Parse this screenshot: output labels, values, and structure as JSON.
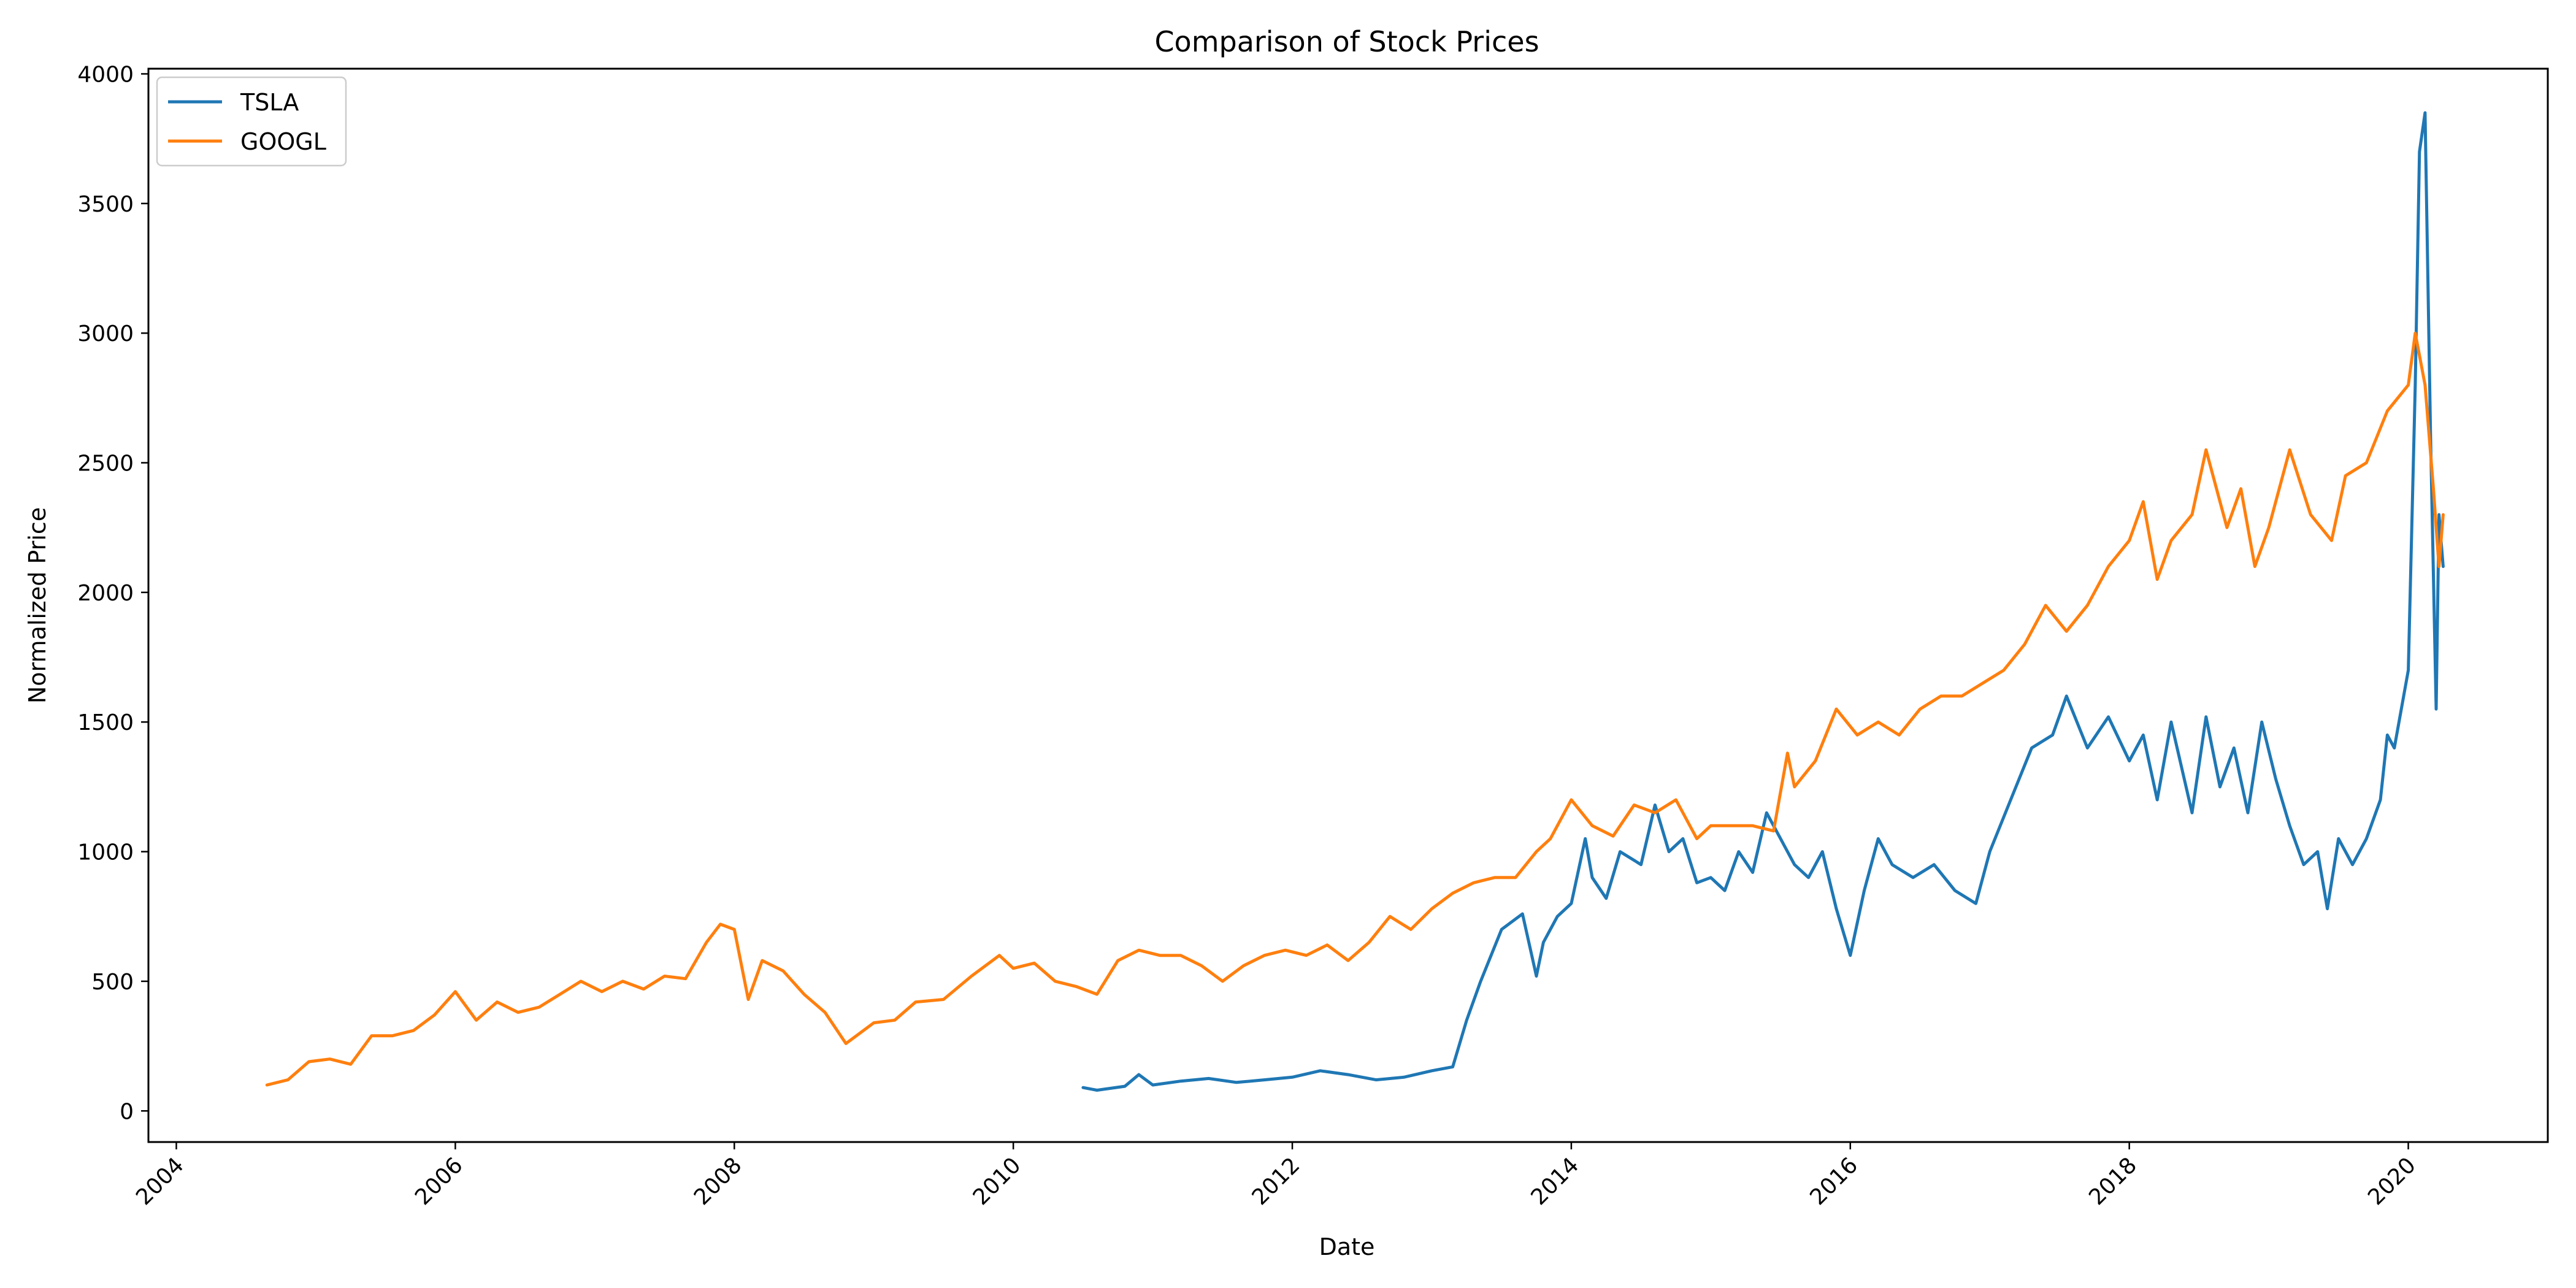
{
  "chart_data": {
    "type": "line",
    "title": "Comparison of Stock Prices",
    "xlabel": "Date",
    "ylabel": "Normalized Price",
    "xlim": [
      2003.8,
      2021.0
    ],
    "ylim": [
      -120,
      4020
    ],
    "x_ticks": [
      2004,
      2006,
      2008,
      2010,
      2012,
      2014,
      2016,
      2018,
      2020
    ],
    "x_tick_labels": [
      "2004",
      "2006",
      "2008",
      "2010",
      "2012",
      "2014",
      "2016",
      "2018",
      "2020"
    ],
    "y_ticks": [
      0,
      500,
      1000,
      1500,
      2000,
      2500,
      3000,
      3500,
      4000
    ],
    "y_tick_labels": [
      "0",
      "500",
      "1000",
      "1500",
      "2000",
      "2500",
      "3000",
      "3500",
      "4000"
    ],
    "grid": false,
    "legend_position": "top-left",
    "series": [
      {
        "name": "TSLA",
        "color": "#1f77b4",
        "x": [
          2010.5,
          2010.6,
          2010.8,
          2010.9,
          2011.0,
          2011.2,
          2011.4,
          2011.6,
          2011.8,
          2012.0,
          2012.2,
          2012.4,
          2012.6,
          2012.8,
          2013.0,
          2013.15,
          2013.25,
          2013.35,
          2013.5,
          2013.65,
          2013.75,
          2013.8,
          2013.9,
          2014.0,
          2014.1,
          2014.15,
          2014.25,
          2014.35,
          2014.5,
          2014.6,
          2014.7,
          2014.8,
          2014.9,
          2015.0,
          2015.1,
          2015.2,
          2015.3,
          2015.4,
          2015.5,
          2015.6,
          2015.7,
          2015.8,
          2015.9,
          2016.0,
          2016.1,
          2016.2,
          2016.3,
          2016.45,
          2016.6,
          2016.75,
          2016.9,
          2017.0,
          2017.15,
          2017.3,
          2017.45,
          2017.55,
          2017.7,
          2017.85,
          2018.0,
          2018.1,
          2018.2,
          2018.3,
          2018.45,
          2018.55,
          2018.65,
          2018.75,
          2018.85,
          2018.95,
          2019.05,
          2019.15,
          2019.25,
          2019.35,
          2019.42,
          2019.5,
          2019.6,
          2019.7,
          2019.8,
          2019.85,
          2019.9,
          2019.95,
          2020.0,
          2020.05,
          2020.08,
          2020.12,
          2020.16,
          2020.2,
          2020.22,
          2020.25
        ],
        "y": [
          90,
          80,
          95,
          140,
          100,
          115,
          125,
          110,
          120,
          130,
          155,
          140,
          120,
          130,
          155,
          170,
          350,
          500,
          700,
          760,
          520,
          650,
          750,
          800,
          1050,
          900,
          820,
          1000,
          950,
          1180,
          1000,
          1050,
          880,
          900,
          850,
          1000,
          920,
          1150,
          1050,
          950,
          900,
          1000,
          780,
          600,
          850,
          1050,
          950,
          900,
          950,
          850,
          800,
          1000,
          1200,
          1400,
          1450,
          1600,
          1400,
          1520,
          1350,
          1450,
          1200,
          1500,
          1150,
          1520,
          1250,
          1400,
          1150,
          1500,
          1280,
          1100,
          950,
          1000,
          780,
          1050,
          950,
          1050,
          1200,
          1450,
          1400,
          1550,
          1700,
          2800,
          3700,
          3850,
          2600,
          1550,
          2300,
          2100
        ]
      },
      {
        "name": "GOOGL",
        "color": "#ff7f0e",
        "x": [
          2004.65,
          2004.8,
          2004.95,
          2005.1,
          2005.25,
          2005.4,
          2005.55,
          2005.7,
          2005.85,
          2006.0,
          2006.15,
          2006.3,
          2006.45,
          2006.6,
          2006.75,
          2006.9,
          2007.05,
          2007.2,
          2007.35,
          2007.5,
          2007.65,
          2007.8,
          2007.9,
          2008.0,
          2008.1,
          2008.2,
          2008.35,
          2008.5,
          2008.65,
          2008.8,
          2008.9,
          2009.0,
          2009.15,
          2009.3,
          2009.5,
          2009.7,
          2009.9,
          2010.0,
          2010.15,
          2010.3,
          2010.45,
          2010.6,
          2010.75,
          2010.9,
          2011.05,
          2011.2,
          2011.35,
          2011.5,
          2011.65,
          2011.8,
          2011.95,
          2012.1,
          2012.25,
          2012.4,
          2012.55,
          2012.7,
          2012.85,
          2013.0,
          2013.15,
          2013.3,
          2013.45,
          2013.6,
          2013.75,
          2013.85,
          2014.0,
          2014.15,
          2014.3,
          2014.45,
          2014.6,
          2014.75,
          2014.9,
          2015.0,
          2015.15,
          2015.3,
          2015.45,
          2015.55,
          2015.6,
          2015.75,
          2015.9,
          2016.05,
          2016.2,
          2016.35,
          2016.5,
          2016.65,
          2016.8,
          2016.95,
          2017.1,
          2017.25,
          2017.4,
          2017.55,
          2017.7,
          2017.85,
          2018.0,
          2018.1,
          2018.2,
          2018.3,
          2018.45,
          2018.55,
          2018.7,
          2018.8,
          2018.9,
          2019.0,
          2019.15,
          2019.3,
          2019.45,
          2019.55,
          2019.7,
          2019.85,
          2020.0,
          2020.05,
          2020.12,
          2020.18,
          2020.22,
          2020.25
        ],
        "y": [
          100,
          120,
          190,
          200,
          180,
          290,
          290,
          310,
          370,
          460,
          350,
          420,
          380,
          400,
          450,
          500,
          460,
          500,
          470,
          520,
          510,
          650,
          720,
          700,
          430,
          580,
          540,
          450,
          380,
          260,
          300,
          340,
          350,
          420,
          430,
          520,
          600,
          550,
          570,
          500,
          480,
          450,
          580,
          620,
          600,
          600,
          560,
          500,
          560,
          600,
          620,
          600,
          640,
          580,
          650,
          750,
          700,
          780,
          840,
          880,
          900,
          900,
          1000,
          1050,
          1200,
          1100,
          1060,
          1180,
          1150,
          1200,
          1050,
          1100,
          1100,
          1100,
          1080,
          1380,
          1250,
          1350,
          1550,
          1450,
          1500,
          1450,
          1550,
          1600,
          1600,
          1650,
          1700,
          1800,
          1950,
          1850,
          1950,
          2100,
          2200,
          2350,
          2050,
          2200,
          2300,
          2550,
          2250,
          2400,
          2100,
          2250,
          2550,
          2300,
          2200,
          2450,
          2500,
          2700,
          2800,
          3000,
          2800,
          2400,
          2100,
          2300
        ]
      }
    ]
  }
}
